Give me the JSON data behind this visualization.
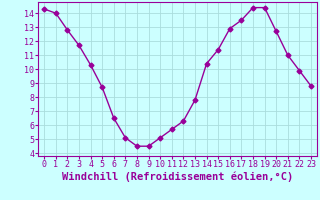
{
  "x": [
    0,
    1,
    2,
    3,
    4,
    5,
    6,
    7,
    8,
    9,
    10,
    11,
    12,
    13,
    14,
    15,
    16,
    17,
    18,
    19,
    20,
    21,
    22,
    23
  ],
  "y": [
    14.3,
    14.0,
    12.8,
    11.7,
    10.3,
    8.7,
    6.5,
    5.1,
    4.5,
    4.5,
    5.1,
    5.7,
    6.3,
    7.8,
    10.4,
    11.4,
    12.9,
    13.5,
    14.4,
    14.4,
    12.7,
    11.0,
    9.9,
    8.8
  ],
  "line_color": "#990099",
  "marker": "D",
  "markersize": 2.5,
  "linewidth": 1.0,
  "bg_color": "#ccffff",
  "grid_color": "#aadddd",
  "xlabel": "Windchill (Refroidissement éolien,°C)",
  "xlabel_color": "#990099",
  "tick_color": "#990099",
  "xlim": [
    -0.5,
    23.5
  ],
  "ylim": [
    3.8,
    14.8
  ],
  "yticks": [
    4,
    5,
    6,
    7,
    8,
    9,
    10,
    11,
    12,
    13,
    14
  ],
  "xticks": [
    0,
    1,
    2,
    3,
    4,
    5,
    6,
    7,
    8,
    9,
    10,
    11,
    12,
    13,
    14,
    15,
    16,
    17,
    18,
    19,
    20,
    21,
    22,
    23
  ],
  "tick_fontsize": 6,
  "xlabel_fontsize": 7.5
}
